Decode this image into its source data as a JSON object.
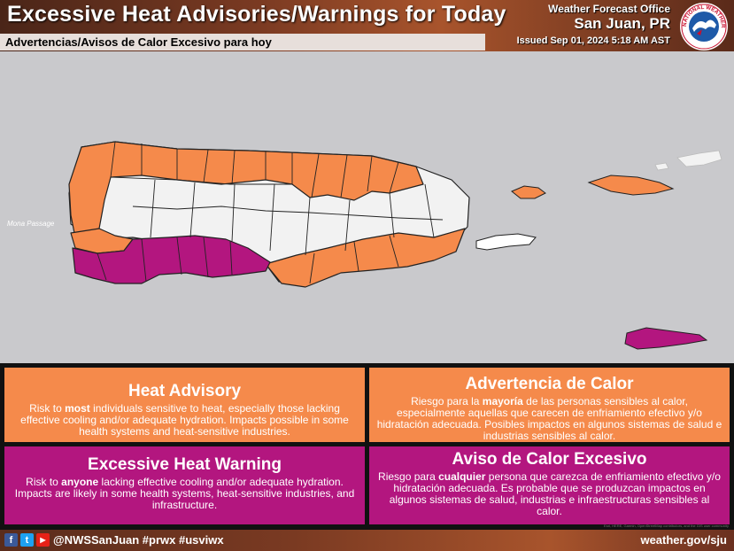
{
  "header": {
    "title": "Excessive Heat Advisories/Warnings for Today",
    "subtitle": "Advertencias/Avisos de Calor Excesivo para hoy",
    "office": "Weather Forecast Office",
    "location": "San Juan, PR",
    "issued": "Issued Sep 01, 2024 5:18 AM AST",
    "logo_text": "NATIONAL WEATHER SERVICE"
  },
  "map": {
    "water_label": "Mona Passage",
    "colors": {
      "advisory": "#f58a4b",
      "warning": "#b3167f",
      "none": "#f2f2f2",
      "water": "#c9c9cc",
      "border": "#222222"
    }
  },
  "legend": {
    "advisory_en": {
      "title": "Heat Advisory",
      "pre": "Risk to ",
      "bold": "most",
      "post": " individuals sensitive to heat, especially those lacking effective cooling and/or adequate hydration. Impacts possible in some health systems and heat-sensitive industries."
    },
    "advisory_es": {
      "title": "Advertencia de Calor",
      "pre": "Riesgo para la ",
      "bold": "mayoría",
      "post": " de las personas sensibles al calor, especialmente aquellas que carecen de enfriamiento efectivo y/o hidratación adecuada. Posibles impactos en algunos sistemas de salud e industrias sensibles al calor."
    },
    "warning_en": {
      "title": "Excessive Heat Warning",
      "pre": "Risk to ",
      "bold": "anyone",
      "post": " lacking effective cooling and/or adequate hydration. Impacts are likely in some health systems, heat-sensitive industries, and infrastructure."
    },
    "warning_es": {
      "title": "Aviso de Calor Excesivo",
      "pre": "Riesgo para ",
      "bold": "cualquier",
      "post": " persona que carezca de enfriamiento efectivo y/o hidratación adecuada. Es probable que se produzcan impactos en algunos sistemas de salud, industrias e infraestructuras sensibles al calor."
    }
  },
  "attribution": "Esri, HERE, Garmin, OpenStreetMap contributors, and the GIS user community",
  "footer": {
    "social_icons": [
      "facebook-icon",
      "twitter-icon",
      "youtube-icon"
    ],
    "handle": "@NWSSanJuan #prwx #usviwx",
    "website": "weather.gov/sju"
  }
}
